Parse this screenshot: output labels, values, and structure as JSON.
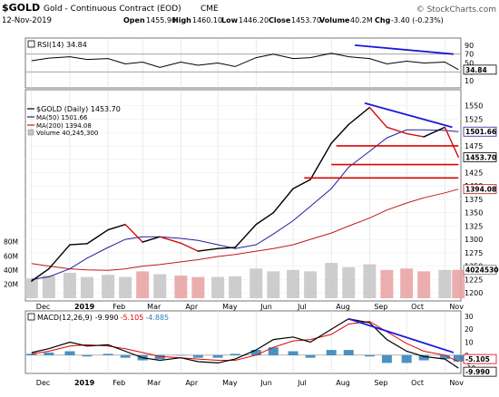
{
  "header": {
    "symbol": "$GOLD",
    "name": "Gold - Continuous Contract (EOD)",
    "exchange": "CME",
    "date": "12-Nov-2019",
    "open_label": "Open",
    "open": "1455.90",
    "high_label": "High",
    "high": "1460.10",
    "low_label": "Low",
    "low": "1446.20",
    "close_label": "Close",
    "close": "1453.70",
    "volume_label": "Volume",
    "volume": "40.2M",
    "chg_label": "Chg",
    "chg": "-3.40 (-0.23%)",
    "brand": "© StockCharts.com"
  },
  "legend": {
    "rsi": "RSI(14) 34.84",
    "price": "$GOLD (Daily) 1453.70",
    "ma50": "MA(50) 1501.66",
    "ma200": "MA(200) 1394.08",
    "volume": "Volume 40,245,300",
    "macd": "MACD(12,26,9)",
    "macd_line": "-9.990",
    "macd_signal": "-5.105",
    "macd_hist": "-4.885"
  },
  "colors": {
    "price": "#000000",
    "up": "#000000",
    "down": "#d01010",
    "ma50": "#2020a0",
    "ma200": "#c01818",
    "volume_up": "#c4c4c4",
    "volume_down": "#e8a0a0",
    "rsi_fill": "#2e8b3a",
    "trendline": "#1a1adc",
    "support": "#e00000",
    "macd_line": "#000000",
    "macd_signal": "#e00000",
    "macd_hist": "#2a7fb8",
    "grid": "#dddddd"
  },
  "chart_data": [
    {
      "type": "line",
      "name": "rsi",
      "title": "RSI(14) 34.84",
      "ylim": [
        0,
        100
      ],
      "yticks": [
        "10",
        "30",
        "50",
        "70",
        "90"
      ],
      "reference_levels": [
        30,
        70
      ],
      "last_value_label": "34.84",
      "x": [
        "2018-12-01",
        "2018-12-15",
        "2019-01-01",
        "2019-01-15",
        "2019-02-01",
        "2019-02-15",
        "2019-03-01",
        "2019-03-15",
        "2019-04-01",
        "2019-04-15",
        "2019-05-01",
        "2019-05-15",
        "2019-06-01",
        "2019-06-15",
        "2019-07-01",
        "2019-07-15",
        "2019-08-01",
        "2019-08-15",
        "2019-09-01",
        "2019-09-15",
        "2019-10-01",
        "2019-10-15",
        "2019-11-01",
        "2019-11-12"
      ],
      "values": [
        55,
        61,
        64,
        58,
        60,
        48,
        52,
        40,
        52,
        45,
        50,
        42,
        62,
        70,
        60,
        62,
        72,
        64,
        60,
        48,
        54,
        50,
        52,
        35
      ]
    },
    {
      "type": "line",
      "name": "price",
      "title": "$GOLD (Daily) 1453.70",
      "ylim": [
        1190,
        1575
      ],
      "yticks": [
        "1200",
        "1225",
        "1250",
        "1275",
        "1300",
        "1325",
        "1350",
        "1375",
        "1400",
        "1425",
        "1450",
        "1475",
        "1500",
        "1525",
        "1550"
      ],
      "xticks": [
        "Dec",
        "2019",
        "Feb",
        "Mar",
        "Apr",
        "May",
        "Jun",
        "Jul",
        "Aug",
        "Sep",
        "Oct",
        "Nov"
      ],
      "last_value_labels": {
        "ma50": "1501.66",
        "close": "1453.70",
        "ma200": "1394.08"
      },
      "x": [
        "2018-12-01",
        "2018-12-15",
        "2019-01-01",
        "2019-01-15",
        "2019-02-01",
        "2019-02-15",
        "2019-03-01",
        "2019-03-15",
        "2019-04-01",
        "2019-04-15",
        "2019-05-01",
        "2019-05-15",
        "2019-06-01",
        "2019-06-15",
        "2019-07-01",
        "2019-07-15",
        "2019-08-01",
        "2019-08-15",
        "2019-09-01",
        "2019-09-15",
        "2019-10-01",
        "2019-10-15",
        "2019-11-01",
        "2019-11-12"
      ],
      "series": [
        {
          "name": "$GOLD (Daily)",
          "values": [
            1222,
            1245,
            1290,
            1292,
            1318,
            1328,
            1295,
            1305,
            1293,
            1278,
            1283,
            1285,
            1328,
            1350,
            1395,
            1412,
            1480,
            1515,
            1547,
            1510,
            1498,
            1492,
            1510,
            1454
          ]
        },
        {
          "name": "MA(50)",
          "values": [
            1225,
            1230,
            1245,
            1265,
            1285,
            1300,
            1305,
            1305,
            1302,
            1298,
            1290,
            1283,
            1290,
            1310,
            1335,
            1362,
            1395,
            1435,
            1465,
            1490,
            1505,
            1505,
            1504,
            1501.66
          ]
        },
        {
          "name": "MA(200)",
          "values": [
            1255,
            1250,
            1245,
            1243,
            1242,
            1245,
            1250,
            1253,
            1258,
            1262,
            1268,
            1272,
            1278,
            1283,
            1290,
            1300,
            1312,
            1325,
            1340,
            1355,
            1368,
            1378,
            1387,
            1394.08
          ]
        }
      ],
      "annotations": {
        "trendline": {
          "from": [
            "2019-08-28",
            1555
          ],
          "to": [
            "2019-11-07",
            1510
          ]
        },
        "support_lines": [
          {
            "y": 1475,
            "from": "2019-08-05",
            "to": "2019-11-12"
          },
          {
            "y": 1440,
            "from": "2019-08-01",
            "to": "2019-11-12"
          },
          {
            "y": 1415,
            "from": "2019-07-10",
            "to": "2019-11-12"
          }
        ]
      }
    },
    {
      "type": "bar",
      "name": "volume",
      "title": "Volume 40,245,300",
      "ylim": [
        0,
        95
      ],
      "yticks": [
        "20M",
        "40M",
        "60M",
        "80M"
      ],
      "last_value_label": "40245300",
      "x": [
        "2018-12-01",
        "2018-12-15",
        "2019-01-01",
        "2019-01-15",
        "2019-02-01",
        "2019-02-15",
        "2019-03-01",
        "2019-03-15",
        "2019-04-01",
        "2019-04-15",
        "2019-05-01",
        "2019-05-15",
        "2019-06-01",
        "2019-06-15",
        "2019-07-01",
        "2019-07-15",
        "2019-08-01",
        "2019-08-15",
        "2019-09-01",
        "2019-09-15",
        "2019-10-01",
        "2019-10-15",
        "2019-11-01",
        "2019-11-12"
      ],
      "values": [
        28,
        32,
        36,
        30,
        33,
        30,
        38,
        34,
        32,
        30,
        30,
        31,
        42,
        38,
        40,
        38,
        50,
        44,
        48,
        40,
        42,
        38,
        40,
        40.2
      ]
    },
    {
      "type": "line",
      "name": "macd",
      "title": "MACD(12,26,9) -9.990, -5.105, -4.885",
      "ylim": [
        -12,
        32
      ],
      "yticks": [
        "-10",
        "-5",
        "0",
        "10",
        "20",
        "30"
      ],
      "xticks": [
        "Dec",
        "2019",
        "Feb",
        "Mar",
        "Apr",
        "May",
        "Jun",
        "Jul",
        "Aug",
        "Sep",
        "Oct",
        "Nov"
      ],
      "last_value_labels": {
        "signal": "-5.105",
        "macd": "-9.990"
      },
      "x": [
        "2018-12-01",
        "2018-12-15",
        "2019-01-01",
        "2019-01-15",
        "2019-02-01",
        "2019-02-15",
        "2019-03-01",
        "2019-03-15",
        "2019-04-01",
        "2019-04-15",
        "2019-05-01",
        "2019-05-15",
        "2019-06-01",
        "2019-06-15",
        "2019-07-01",
        "2019-07-15",
        "2019-08-01",
        "2019-08-15",
        "2019-09-01",
        "2019-09-15",
        "2019-10-01",
        "2019-10-15",
        "2019-11-01",
        "2019-11-12"
      ],
      "series": [
        {
          "name": "MACD",
          "values": [
            2,
            5,
            10,
            7,
            8,
            3,
            -2,
            -4,
            -2,
            -5,
            -6,
            -3,
            4,
            12,
            14,
            10,
            20,
            28,
            25,
            12,
            3,
            -1,
            -3,
            -9.99
          ]
        },
        {
          "name": "Signal",
          "values": [
            1,
            3,
            7,
            8,
            7,
            5,
            2,
            -1,
            -2,
            -3,
            -4,
            -4,
            0,
            6,
            11,
            12,
            16,
            24,
            26,
            18,
            9,
            3,
            0,
            -5.105
          ]
        }
      ],
      "annotations": {
        "trendline": {
          "from": [
            "2019-08-15",
            28
          ],
          "to": [
            "2019-11-08",
            2
          ]
        }
      }
    }
  ]
}
